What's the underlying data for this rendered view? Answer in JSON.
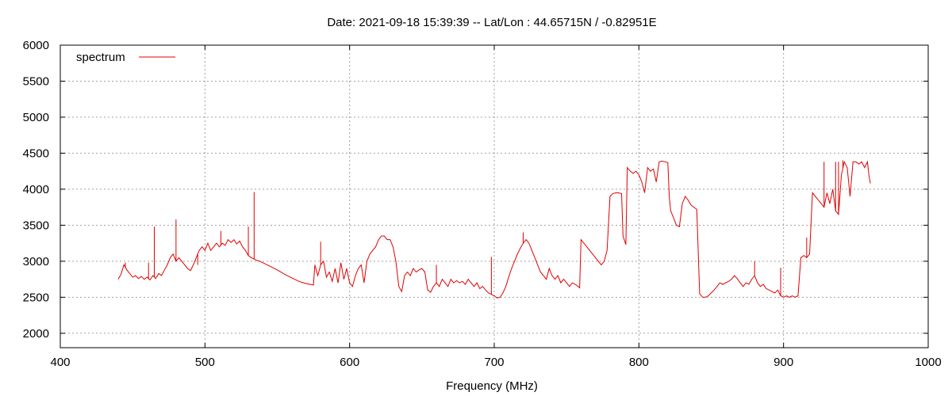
{
  "chart_data": {
    "type": "line",
    "title": "Date: 2021-09-18 15:39:39  --  Lat/Lon : 44.65715N / -0.82951E",
    "xlabel": "Frequency (MHz)",
    "ylabel": "",
    "xlim": [
      400,
      1000
    ],
    "ylim": [
      1800,
      6000
    ],
    "xticks": [
      400,
      500,
      600,
      700,
      800,
      900,
      1000
    ],
    "yticks": [
      2000,
      2500,
      3000,
      3500,
      4000,
      4500,
      5000,
      5500,
      6000
    ],
    "grid": true,
    "legend_position": "top-left",
    "series": [
      {
        "name": "spectrum",
        "color": "#e00000",
        "points": [
          [
            440,
            2750
          ],
          [
            442,
            2820
          ],
          [
            444,
            2950
          ],
          [
            446,
            2880
          ],
          [
            448,
            2830
          ],
          [
            450,
            2780
          ],
          [
            452,
            2800
          ],
          [
            454,
            2760
          ],
          [
            456,
            2790
          ],
          [
            458,
            2750
          ],
          [
            460,
            2780
          ],
          [
            462,
            2740
          ],
          [
            464,
            2800
          ],
          [
            466,
            2760
          ],
          [
            468,
            2830
          ],
          [
            470,
            2800
          ],
          [
            472,
            2880
          ],
          [
            474,
            2950
          ],
          [
            476,
            3050
          ],
          [
            478,
            3100
          ],
          [
            480,
            3000
          ],
          [
            482,
            3050
          ],
          [
            484,
            3000
          ],
          [
            486,
            2950
          ],
          [
            488,
            2900
          ],
          [
            490,
            2870
          ],
          [
            492,
            2950
          ],
          [
            494,
            3050
          ],
          [
            496,
            3150
          ],
          [
            498,
            3200
          ],
          [
            500,
            3150
          ],
          [
            502,
            3250
          ],
          [
            504,
            3150
          ],
          [
            506,
            3200
          ],
          [
            508,
            3250
          ],
          [
            510,
            3200
          ],
          [
            512,
            3250
          ],
          [
            514,
            3220
          ],
          [
            516,
            3300
          ],
          [
            518,
            3260
          ],
          [
            520,
            3300
          ],
          [
            522,
            3240
          ],
          [
            524,
            3280
          ],
          [
            526,
            3200
          ],
          [
            528,
            3150
          ],
          [
            530,
            3080
          ],
          [
            532,
            3050
          ],
          [
            534,
            3030
          ],
          [
            536,
            3010
          ],
          [
            538,
            3000
          ],
          [
            540,
            2980
          ],
          [
            545,
            2930
          ],
          [
            550,
            2880
          ],
          [
            555,
            2820
          ],
          [
            560,
            2770
          ],
          [
            565,
            2720
          ],
          [
            570,
            2690
          ],
          [
            575,
            2670
          ],
          [
            576,
            2950
          ],
          [
            578,
            2800
          ],
          [
            580,
            2950
          ],
          [
            582,
            3000
          ],
          [
            584,
            2780
          ],
          [
            586,
            2850
          ],
          [
            588,
            2720
          ],
          [
            590,
            2900
          ],
          [
            592,
            2700
          ],
          [
            594,
            2980
          ],
          [
            596,
            2750
          ],
          [
            598,
            2900
          ],
          [
            600,
            2700
          ],
          [
            602,
            2650
          ],
          [
            604,
            2800
          ],
          [
            606,
            2900
          ],
          [
            608,
            2950
          ],
          [
            610,
            2700
          ],
          [
            612,
            3000
          ],
          [
            614,
            3100
          ],
          [
            616,
            3150
          ],
          [
            618,
            3200
          ],
          [
            620,
            3300
          ],
          [
            622,
            3350
          ],
          [
            624,
            3350
          ],
          [
            626,
            3300
          ],
          [
            628,
            3300
          ],
          [
            630,
            3200
          ],
          [
            632,
            3000
          ],
          [
            634,
            2650
          ],
          [
            636,
            2580
          ],
          [
            638,
            2800
          ],
          [
            640,
            2850
          ],
          [
            642,
            2800
          ],
          [
            644,
            2900
          ],
          [
            646,
            2850
          ],
          [
            648,
            2880
          ],
          [
            650,
            2900
          ],
          [
            652,
            2850
          ],
          [
            654,
            2600
          ],
          [
            656,
            2570
          ],
          [
            658,
            2650
          ],
          [
            660,
            2700
          ],
          [
            662,
            2650
          ],
          [
            664,
            2750
          ],
          [
            666,
            2700
          ],
          [
            668,
            2650
          ],
          [
            670,
            2750
          ],
          [
            672,
            2700
          ],
          [
            674,
            2730
          ],
          [
            676,
            2700
          ],
          [
            678,
            2720
          ],
          [
            680,
            2680
          ],
          [
            682,
            2750
          ],
          [
            684,
            2700
          ],
          [
            686,
            2650
          ],
          [
            688,
            2700
          ],
          [
            690,
            2620
          ],
          [
            692,
            2650
          ],
          [
            694,
            2600
          ],
          [
            696,
            2560
          ],
          [
            698,
            2540
          ],
          [
            700,
            2520
          ],
          [
            702,
            2490
          ],
          [
            704,
            2500
          ],
          [
            706,
            2560
          ],
          [
            708,
            2650
          ],
          [
            710,
            2780
          ],
          [
            712,
            2900
          ],
          [
            714,
            3000
          ],
          [
            716,
            3100
          ],
          [
            718,
            3180
          ],
          [
            720,
            3250
          ],
          [
            722,
            3300
          ],
          [
            724,
            3250
          ],
          [
            726,
            3150
          ],
          [
            728,
            3050
          ],
          [
            730,
            2950
          ],
          [
            732,
            2850
          ],
          [
            734,
            2800
          ],
          [
            736,
            2750
          ],
          [
            738,
            2900
          ],
          [
            740,
            2800
          ],
          [
            742,
            2750
          ],
          [
            744,
            2800
          ],
          [
            746,
            2700
          ],
          [
            748,
            2750
          ],
          [
            750,
            2700
          ],
          [
            752,
            2650
          ],
          [
            754,
            2700
          ],
          [
            756,
            2680
          ],
          [
            758,
            2650
          ],
          [
            759,
            2630
          ],
          [
            760,
            3300
          ],
          [
            762,
            3250
          ],
          [
            764,
            3200
          ],
          [
            766,
            3150
          ],
          [
            768,
            3100
          ],
          [
            770,
            3050
          ],
          [
            772,
            3000
          ],
          [
            774,
            2950
          ],
          [
            776,
            3000
          ],
          [
            778,
            3150
          ],
          [
            780,
            3900
          ],
          [
            782,
            3940
          ],
          [
            784,
            3950
          ],
          [
            786,
            3950
          ],
          [
            788,
            3940
          ],
          [
            789,
            3350
          ],
          [
            791,
            3230
          ],
          [
            792,
            4300
          ],
          [
            794,
            4250
          ],
          [
            796,
            4220
          ],
          [
            798,
            4250
          ],
          [
            800,
            4200
          ],
          [
            802,
            4100
          ],
          [
            804,
            3950
          ],
          [
            806,
            4300
          ],
          [
            808,
            4250
          ],
          [
            810,
            4280
          ],
          [
            812,
            4100
          ],
          [
            814,
            4380
          ],
          [
            816,
            4390
          ],
          [
            818,
            4380
          ],
          [
            820,
            4370
          ],
          [
            821,
            3900
          ],
          [
            822,
            3700
          ],
          [
            824,
            3600
          ],
          [
            826,
            3500
          ],
          [
            828,
            3480
          ],
          [
            830,
            3800
          ],
          [
            832,
            3900
          ],
          [
            834,
            3850
          ],
          [
            836,
            3780
          ],
          [
            838,
            3750
          ],
          [
            840,
            3720
          ],
          [
            842,
            2550
          ],
          [
            844,
            2500
          ],
          [
            846,
            2500
          ],
          [
            848,
            2520
          ],
          [
            850,
            2560
          ],
          [
            852,
            2600
          ],
          [
            854,
            2650
          ],
          [
            856,
            2700
          ],
          [
            858,
            2680
          ],
          [
            860,
            2700
          ],
          [
            862,
            2720
          ],
          [
            864,
            2750
          ],
          [
            866,
            2800
          ],
          [
            868,
            2760
          ],
          [
            870,
            2700
          ],
          [
            872,
            2650
          ],
          [
            874,
            2700
          ],
          [
            876,
            2680
          ],
          [
            878,
            2750
          ],
          [
            880,
            2800
          ],
          [
            882,
            2700
          ],
          [
            884,
            2650
          ],
          [
            886,
            2680
          ],
          [
            888,
            2620
          ],
          [
            890,
            2600
          ],
          [
            892,
            2580
          ],
          [
            894,
            2560
          ],
          [
            896,
            2600
          ],
          [
            898,
            2520
          ],
          [
            900,
            2500
          ],
          [
            902,
            2520
          ],
          [
            904,
            2500
          ],
          [
            906,
            2520
          ],
          [
            908,
            2500
          ],
          [
            910,
            2520
          ],
          [
            912,
            3050
          ],
          [
            914,
            3080
          ],
          [
            916,
            3050
          ],
          [
            918,
            3100
          ],
          [
            920,
            3950
          ],
          [
            922,
            3900
          ],
          [
            924,
            3850
          ],
          [
            926,
            3800
          ],
          [
            928,
            3750
          ],
          [
            930,
            3950
          ],
          [
            932,
            3800
          ],
          [
            934,
            4000
          ],
          [
            936,
            3700
          ],
          [
            938,
            3650
          ],
          [
            940,
            4200
          ],
          [
            942,
            4380
          ],
          [
            944,
            4300
          ],
          [
            946,
            3900
          ],
          [
            948,
            4380
          ],
          [
            950,
            4380
          ],
          [
            952,
            4350
          ],
          [
            954,
            4380
          ],
          [
            956,
            4300
          ],
          [
            958,
            4380
          ],
          [
            959,
            4200
          ],
          [
            960,
            4080
          ]
        ]
      }
    ],
    "spikes": [
      [
        445,
        2980
      ],
      [
        461,
        2980
      ],
      [
        465,
        3480
      ],
      [
        480,
        3580
      ],
      [
        495,
        2950
      ],
      [
        511,
        3420
      ],
      [
        530,
        3480
      ],
      [
        534,
        3960
      ],
      [
        580,
        3270
      ],
      [
        660,
        2950
      ],
      [
        698,
        3060
      ],
      [
        720,
        3400
      ],
      [
        880,
        3000
      ],
      [
        898,
        2910
      ],
      [
        916,
        3330
      ],
      [
        928,
        4380
      ],
      [
        936,
        4380
      ],
      [
        938,
        4380
      ],
      [
        941,
        4400
      ]
    ]
  }
}
